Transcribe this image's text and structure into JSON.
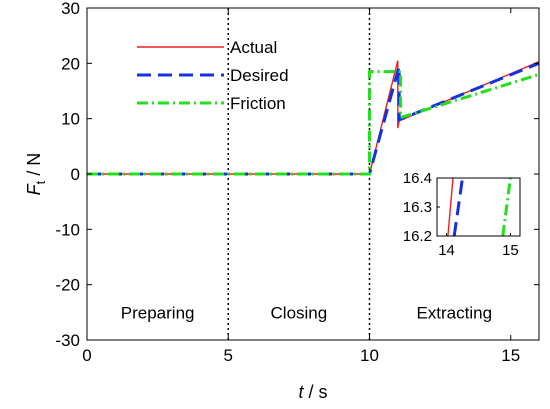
{
  "chart_data": {
    "type": "line",
    "xlabel": {
      "symbol": "t",
      "unit": "s"
    },
    "ylabel": {
      "symbol": "F",
      "subscript": "t",
      "unit": "N"
    },
    "xlim": [
      0,
      16
    ],
    "ylim": [
      -30,
      30
    ],
    "xticks": [
      0,
      5,
      10,
      15
    ],
    "yticks": [
      -30,
      -20,
      -10,
      0,
      10,
      20,
      30
    ],
    "grid": false,
    "legend_position": "top-left",
    "vlines": [
      5,
      10
    ],
    "phases": [
      {
        "label": "Preparing",
        "x": 2.5
      },
      {
        "label": "Closing",
        "x": 7.5
      },
      {
        "label": "Extracting",
        "x": 13.0
      }
    ],
    "series": [
      {
        "name": "Actual",
        "color": "#e8201e",
        "style": "solid",
        "x": [
          0,
          10,
          11.0,
          11.0,
          11.05,
          16
        ],
        "y": [
          0,
          0,
          20.5,
          8.3,
          9.6,
          20.3
        ]
      },
      {
        "name": "Desired",
        "color": "#1430e0",
        "style": "dashed",
        "x": [
          0,
          10,
          11.05,
          11.05,
          16
        ],
        "y": [
          0,
          0,
          19.5,
          9.8,
          20.0
        ]
      },
      {
        "name": "Friction",
        "color": "#22e01c",
        "style": "dashdot",
        "x": [
          0,
          10,
          10.0,
          11.1,
          11.1,
          16
        ],
        "y": [
          0,
          0,
          18.5,
          18.5,
          10.2,
          18.0
        ]
      }
    ],
    "inset": {
      "xlim": [
        13.85,
        15.15
      ],
      "ylim": [
        16.2,
        16.4
      ],
      "xticks": [
        14,
        15
      ],
      "yticks": [
        16.2,
        16.3,
        16.4
      ],
      "series": [
        {
          "name": "Actual",
          "x": [
            14.02,
            14.1
          ],
          "y": [
            16.2,
            16.4
          ]
        },
        {
          "name": "Desired",
          "x": [
            14.12,
            14.25
          ],
          "y": [
            16.2,
            16.4
          ]
        },
        {
          "name": "Friction",
          "x": [
            14.88,
            15.0
          ],
          "y": [
            16.2,
            16.4
          ]
        }
      ]
    }
  }
}
